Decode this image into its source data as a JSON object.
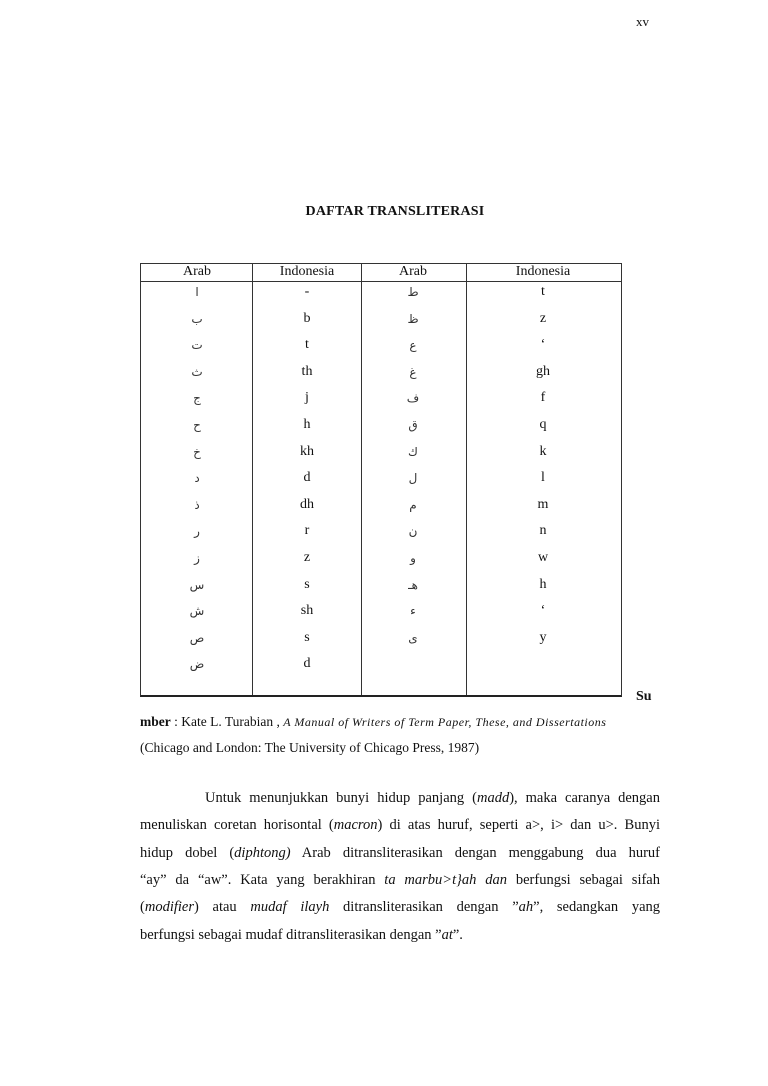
{
  "page_number": "xv",
  "title": "DAFTAR TRANSLITERASI",
  "table": {
    "headers": [
      "Arab",
      "Indonesia",
      "Arab",
      "Indonesia"
    ],
    "rows": [
      [
        "ا",
        "-",
        "ط",
        "t"
      ],
      [
        "ب",
        "b",
        "ظ",
        "z"
      ],
      [
        "ت",
        "t",
        "ع",
        "‘"
      ],
      [
        "ث",
        "th",
        "غ",
        "gh"
      ],
      [
        "ج",
        "j",
        "ف",
        "f"
      ],
      [
        "ح",
        "h",
        "ق",
        "q"
      ],
      [
        "خ",
        "kh",
        "ك",
        "k"
      ],
      [
        "د",
        "d",
        "ل",
        "l"
      ],
      [
        "ذ",
        "dh",
        "م",
        "m"
      ],
      [
        "ر",
        "r",
        "ن",
        "n"
      ],
      [
        "ز",
        "z",
        "و",
        "w"
      ],
      [
        "س",
        "s",
        "هـ",
        "h"
      ],
      [
        "ش",
        "sh",
        "ء",
        "‘"
      ],
      [
        "ص",
        "s",
        "ى",
        "y"
      ],
      [
        "ض",
        "d",
        "",
        ""
      ]
    ]
  },
  "source": {
    "label_part1": "Su",
    "label_part2": "mber",
    "author": " : Kate L. Turabian , ",
    "book": "A Manual of Writers of Term Paper, These, and Dissertations",
    "publication": "(Chicago and London: The University of Chicago Press, 1987)"
  },
  "paragraph": {
    "lines": [
      [
        "Untuk menunjukkan bunyi hidup panjang (",
        "madd",
        "), maka caranya dengan"
      ],
      [
        "menuliskan coretan horisontal (",
        "macron",
        ") di atas huruf, seperti a>, i> dan u>. Bunyi"
      ],
      [
        "hidup dobel (",
        "diphtong)",
        " Arab ditransliterasikan dengan menggabung dua huruf"
      ],
      [
        "“ay” da “aw”. Kata yang berakhiran ",
        "ta marbu>t}ah dan",
        " berfungsi sebagai sifah"
      ],
      [
        "(",
        "modifier",
        ") atau ",
        "mudaf ilayh",
        " ditransliterasikan dengan ”",
        "ah",
        "”, sedangkan yang"
      ],
      [
        "berfungsi sebagai mudaf ditransliterasikan dengan ”",
        "at",
        "”."
      ]
    ]
  }
}
